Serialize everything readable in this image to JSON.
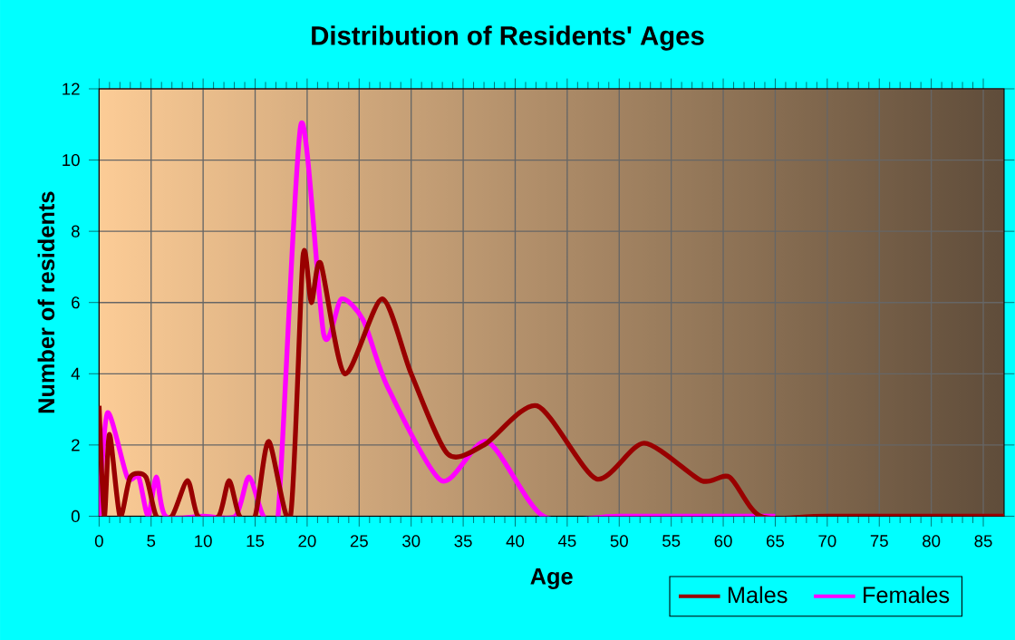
{
  "chart_data": {
    "type": "line",
    "title": "Distribution of Residents' Ages",
    "xlabel": "Age",
    "ylabel": "Number of residents",
    "xlim": [
      0,
      87
    ],
    "xticks": [
      0,
      5,
      10,
      15,
      20,
      25,
      30,
      35,
      40,
      45,
      50,
      55,
      60,
      65,
      70,
      75,
      80,
      85
    ],
    "ylim": [
      0,
      12
    ],
    "yticks": [
      0,
      2,
      4,
      6,
      8,
      10,
      12
    ],
    "grid": true,
    "legend": "bottom right",
    "marker": "none",
    "line_style": "solid",
    "series": [
      {
        "name": "Males",
        "color": "#990000",
        "x": [
          0,
          0.5,
          1,
          2,
          3,
          4.5,
          5.5,
          7,
          8.5,
          9.5,
          11.5,
          12.5,
          13.5,
          15,
          16.3,
          18.4,
          19.6,
          20.4,
          21.3,
          23.6,
          27.2,
          30,
          33.5,
          37,
          42.1,
          47.8,
          52.4,
          57.9,
          60.6,
          63.6,
          70,
          87
        ],
        "values": [
          3.1,
          0,
          2.3,
          0,
          1.1,
          1.1,
          0,
          0,
          1,
          0,
          0,
          1,
          0,
          0,
          2.1,
          0,
          7.3,
          6,
          7.1,
          4,
          6.1,
          4,
          1.75,
          2,
          3.1,
          1.05,
          2.05,
          1,
          1.1,
          0,
          0,
          0
        ]
      },
      {
        "name": "Females",
        "color": "#ff00ff",
        "x": [
          0,
          0.8,
          2.7,
          3.8,
          4.7,
          5.5,
          6.4,
          10,
          13.1,
          14.4,
          15.8,
          17.2,
          19.4,
          21.6,
          23.3,
          25.4,
          27.7,
          32.9,
          37.3,
          42.7,
          50,
          65
        ],
        "values": [
          0,
          2.9,
          1.1,
          1.1,
          0,
          1.1,
          0,
          0,
          0,
          1.1,
          0,
          0,
          11,
          5.1,
          6.1,
          5.5,
          3.65,
          1,
          2.1,
          0,
          0,
          0
        ]
      }
    ]
  }
}
